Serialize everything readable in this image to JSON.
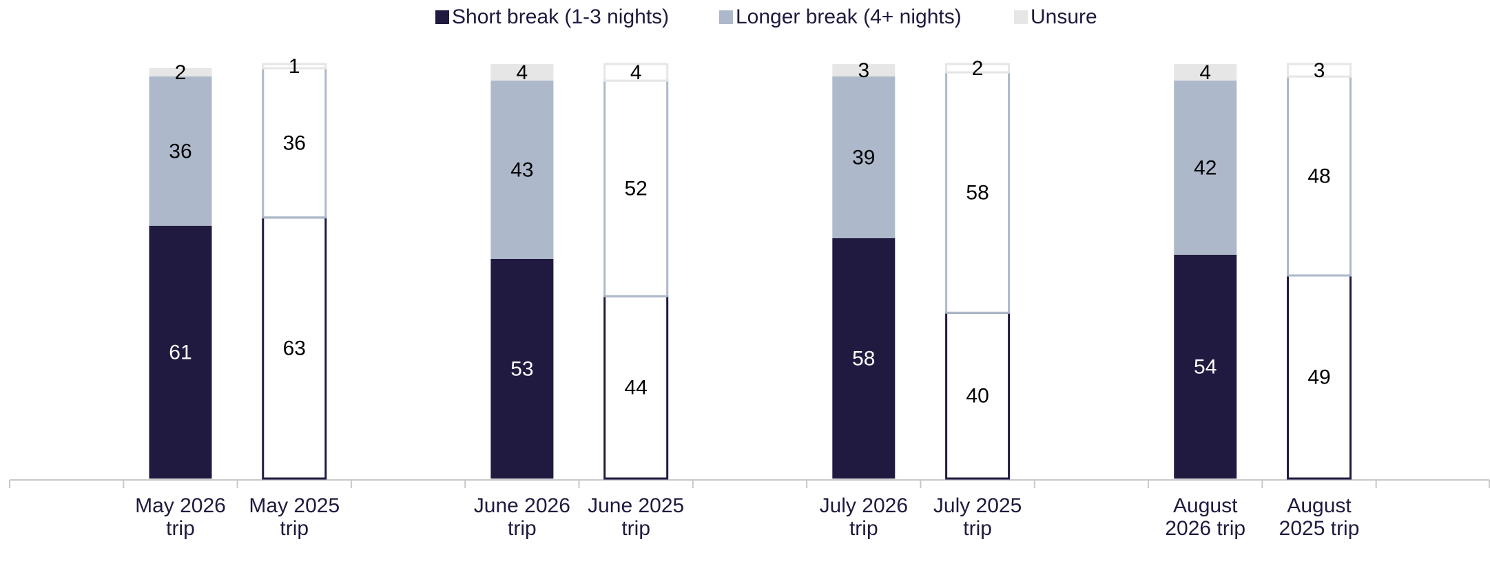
{
  "chart_data": {
    "type": "stacked_bar",
    "categories": [
      null,
      "May 2026 trip",
      "May 2025 trip",
      null,
      "June 2026 trip",
      "June 2025 trip",
      null,
      "July 2026 trip",
      "July 2025 trip",
      null,
      "August 2026 trip",
      "August 2025 trip",
      null
    ],
    "hollow": [
      false,
      false,
      true,
      false,
      false,
      true,
      false,
      false,
      true,
      false,
      false,
      true,
      false
    ],
    "series": [
      {
        "name": "Short break (1-3 nights)",
        "color": "#201a40",
        "label_color": "#ffffff",
        "values": [
          null,
          61,
          63,
          null,
          53,
          44,
          null,
          58,
          40,
          null,
          54,
          49,
          null
        ]
      },
      {
        "name": "Longer break (4+ nights)",
        "color": "#adb9ca",
        "label_color": "#000000",
        "values": [
          null,
          36,
          36,
          null,
          43,
          52,
          null,
          39,
          58,
          null,
          42,
          48,
          null
        ]
      },
      {
        "name": "Unsure",
        "color": "#e6e6e6",
        "label_color": "#000000",
        "values": [
          null,
          2,
          1,
          null,
          4,
          4,
          null,
          3,
          2,
          null,
          4,
          3,
          null
        ]
      }
    ],
    "ylim": [
      0,
      100
    ],
    "legend": "top"
  }
}
